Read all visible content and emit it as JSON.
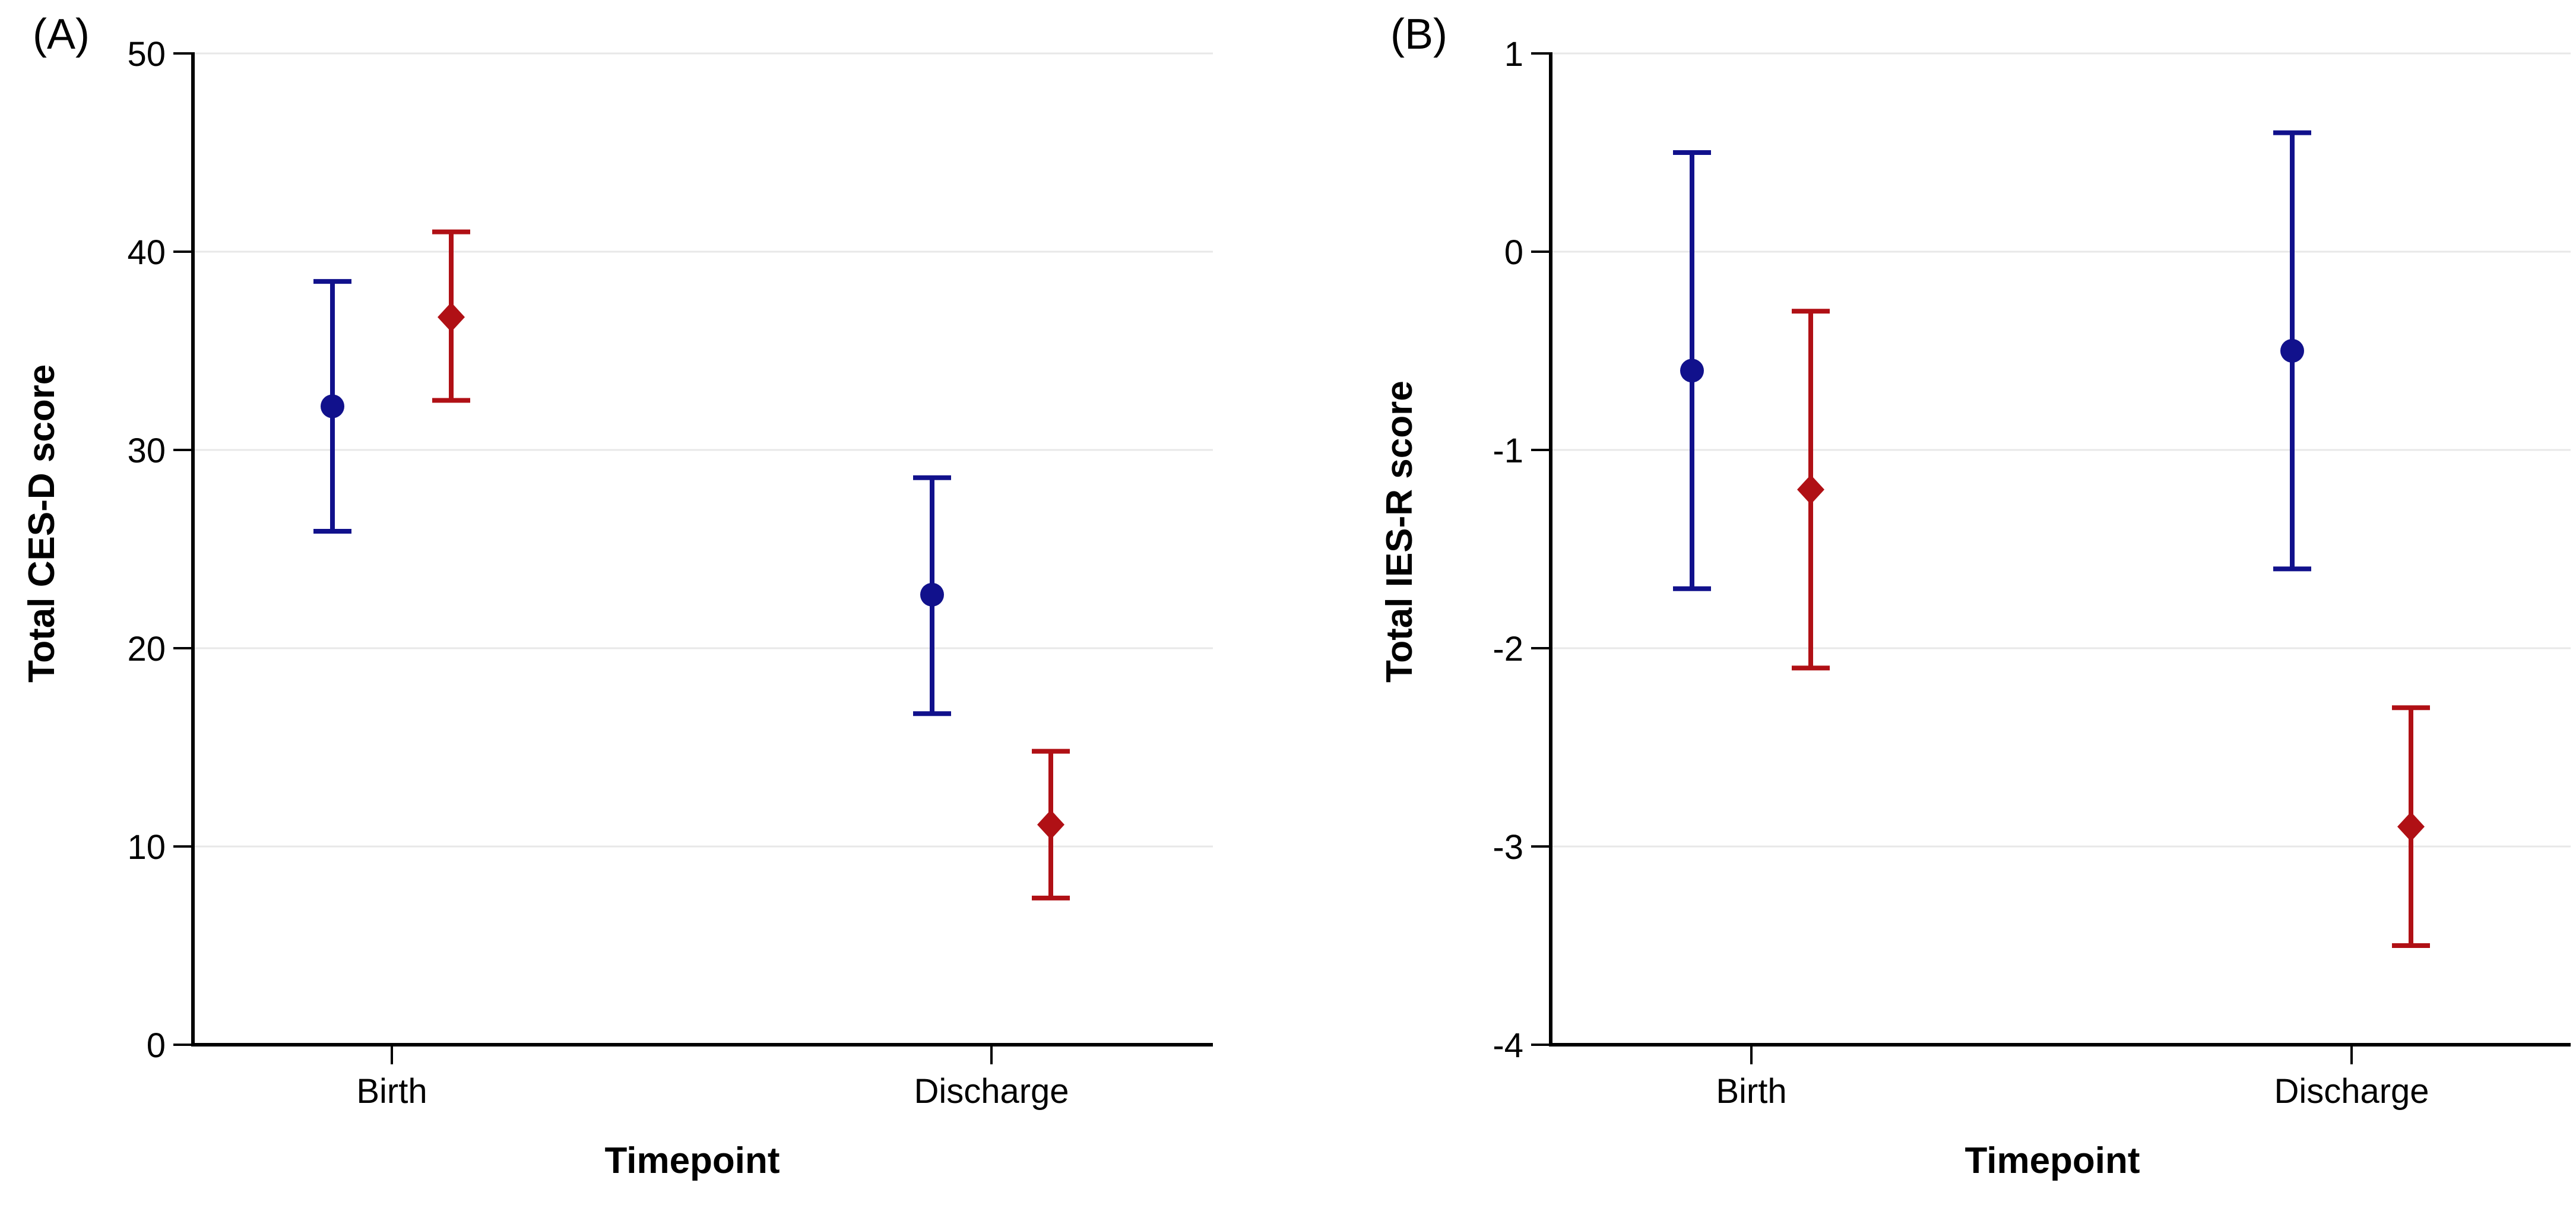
{
  "figure": {
    "background": "#FFFFFF",
    "grid_color": "#E8E8E8",
    "axis_color": "#000000",
    "series_colors": {
      "blue": "#11118C",
      "red": "#B01015"
    }
  },
  "chart_data": [
    {
      "type": "errorbar",
      "panel_label": "(A)",
      "title": "",
      "ylabel": "Total CES-D score",
      "xlabel": "Timepoint",
      "categories": [
        "Birth",
        "Discharge"
      ],
      "ylim": [
        0,
        50
      ],
      "yticks": [
        0,
        10,
        20,
        30,
        40,
        50
      ],
      "grid": true,
      "legend": false,
      "series": [
        {
          "name": "blue-circle-group",
          "marker": "circle",
          "color": "#11118C",
          "values": [
            32.2,
            22.7
          ],
          "ci_low": [
            25.9,
            16.7
          ],
          "ci_high": [
            38.5,
            28.6
          ]
        },
        {
          "name": "red-diamond-group",
          "marker": "diamond",
          "color": "#B01015",
          "values": [
            36.7,
            11.1
          ],
          "ci_low": [
            32.5,
            7.4
          ],
          "ci_high": [
            41.0,
            14.8
          ]
        }
      ]
    },
    {
      "type": "errorbar",
      "panel_label": "(B)",
      "title": "",
      "ylabel": "Total IES-R score",
      "xlabel": "Timepoint",
      "categories": [
        "Birth",
        "Discharge"
      ],
      "ylim": [
        -4,
        1
      ],
      "yticks": [
        -4,
        -3,
        -2,
        -1,
        0,
        1
      ],
      "grid": true,
      "legend": false,
      "series": [
        {
          "name": "blue-circle-group",
          "marker": "circle",
          "color": "#11118C",
          "values": [
            -0.6,
            -0.5
          ],
          "ci_low": [
            -1.7,
            -1.6
          ],
          "ci_high": [
            0.5,
            0.6
          ]
        },
        {
          "name": "red-diamond-group",
          "marker": "diamond",
          "color": "#B01015",
          "values": [
            -1.2,
            -2.9
          ],
          "ci_low": [
            -2.1,
            -3.5
          ],
          "ci_high": [
            -0.3,
            -2.3
          ]
        }
      ]
    }
  ]
}
